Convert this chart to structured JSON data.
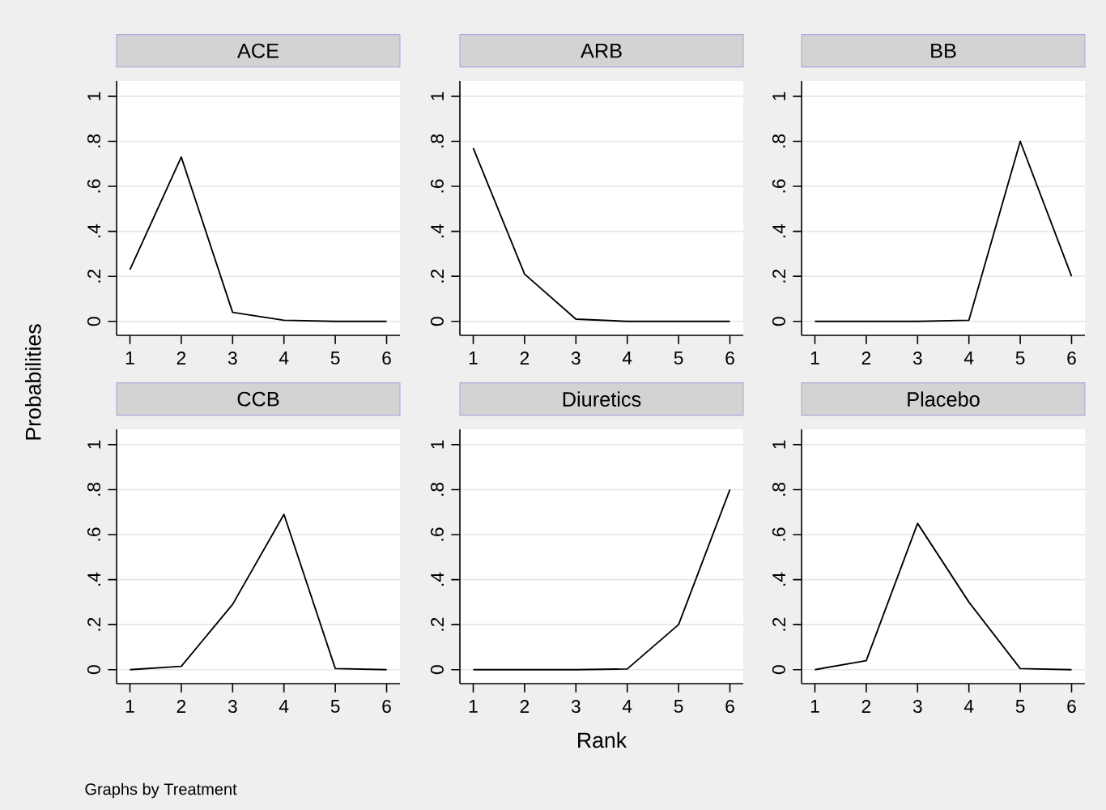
{
  "chart_data": [
    {
      "type": "line",
      "title": "ACE",
      "ylabel": "Probabilities",
      "x": [
        1,
        2,
        3,
        4,
        5,
        6
      ],
      "values": [
        0.23,
        0.73,
        0.04,
        0.005,
        0,
        0
      ],
      "color": "#000000",
      "xlim": [
        0.74,
        6.26
      ],
      "ylim": [
        -0.062,
        1.068
      ],
      "xticks": [
        1,
        2,
        3,
        4,
        5,
        6
      ],
      "yticks": [
        {
          "value": 0,
          "label": "0"
        },
        {
          "value": 0.2,
          "label": ".2"
        },
        {
          "value": 0.4,
          "label": ".4"
        },
        {
          "value": 0.6,
          "label": ".6"
        },
        {
          "value": 0.8,
          "label": ".8"
        },
        {
          "value": 1,
          "label": "1"
        }
      ],
      "grid": "y"
    },
    {
      "type": "line",
      "title": "ARB",
      "x": [
        1,
        2,
        3,
        4,
        5,
        6
      ],
      "values": [
        0.77,
        0.21,
        0.01,
        0,
        0,
        0
      ],
      "color": "#000000",
      "xlim": [
        0.74,
        6.26
      ],
      "ylim": [
        -0.062,
        1.068
      ],
      "xticks": [
        1,
        2,
        3,
        4,
        5,
        6
      ],
      "yticks": [
        {
          "value": 0,
          "label": "0"
        },
        {
          "value": 0.2,
          "label": ".2"
        },
        {
          "value": 0.4,
          "label": ".4"
        },
        {
          "value": 0.6,
          "label": ".6"
        },
        {
          "value": 0.8,
          "label": ".8"
        },
        {
          "value": 1,
          "label": "1"
        }
      ],
      "grid": "y"
    },
    {
      "type": "line",
      "title": "BB",
      "x": [
        1,
        2,
        3,
        4,
        5,
        6
      ],
      "values": [
        0,
        0,
        0,
        0.005,
        0.8,
        0.2
      ],
      "color": "#000000",
      "xlim": [
        0.74,
        6.26
      ],
      "ylim": [
        -0.062,
        1.068
      ],
      "xticks": [
        1,
        2,
        3,
        4,
        5,
        6
      ],
      "yticks": [
        {
          "value": 0,
          "label": "0"
        },
        {
          "value": 0.2,
          "label": ".2"
        },
        {
          "value": 0.4,
          "label": ".4"
        },
        {
          "value": 0.6,
          "label": ".6"
        },
        {
          "value": 0.8,
          "label": ".8"
        },
        {
          "value": 1,
          "label": "1"
        }
      ],
      "grid": "y"
    },
    {
      "type": "line",
      "title": "CCB",
      "annotations": [
        "Graphs by Treatment"
      ],
      "x": [
        1,
        2,
        3,
        4,
        5,
        6
      ],
      "values": [
        0,
        0.015,
        0.29,
        0.69,
        0.005,
        0
      ],
      "color": "#000000",
      "xlim": [
        0.74,
        6.26
      ],
      "ylim": [
        -0.062,
        1.068
      ],
      "xticks": [
        1,
        2,
        3,
        4,
        5,
        6
      ],
      "yticks": [
        {
          "value": 0,
          "label": "0"
        },
        {
          "value": 0.2,
          "label": ".2"
        },
        {
          "value": 0.4,
          "label": ".4"
        },
        {
          "value": 0.6,
          "label": ".6"
        },
        {
          "value": 0.8,
          "label": ".8"
        },
        {
          "value": 1,
          "label": "1"
        }
      ],
      "grid": "y"
    },
    {
      "type": "line",
      "title": "Diuretics",
      "xlabel": "Rank",
      "x": [
        1,
        2,
        3,
        4,
        5,
        6
      ],
      "values": [
        0,
        0,
        0,
        0.003,
        0.2,
        0.8
      ],
      "color": "#000000",
      "xlim": [
        0.74,
        6.26
      ],
      "ylim": [
        -0.062,
        1.068
      ],
      "xticks": [
        1,
        2,
        3,
        4,
        5,
        6
      ],
      "yticks": [
        {
          "value": 0,
          "label": "0"
        },
        {
          "value": 0.2,
          "label": ".2"
        },
        {
          "value": 0.4,
          "label": ".4"
        },
        {
          "value": 0.6,
          "label": ".6"
        },
        {
          "value": 0.8,
          "label": ".8"
        },
        {
          "value": 1,
          "label": "1"
        }
      ],
      "grid": "y"
    },
    {
      "type": "line",
      "title": "Placebo",
      "x": [
        1,
        2,
        3,
        4,
        5,
        6
      ],
      "values": [
        0,
        0.04,
        0.65,
        0.3,
        0.005,
        0
      ],
      "color": "#000000",
      "xlim": [
        0.74,
        6.26
      ],
      "ylim": [
        -0.062,
        1.068
      ],
      "xticks": [
        1,
        2,
        3,
        4,
        5,
        6
      ],
      "yticks": [
        {
          "value": 0,
          "label": "0"
        },
        {
          "value": 0.2,
          "label": ".2"
        },
        {
          "value": 0.4,
          "label": ".4"
        },
        {
          "value": 0.6,
          "label": ".6"
        },
        {
          "value": 0.8,
          "label": ".8"
        },
        {
          "value": 1,
          "label": "1"
        }
      ],
      "grid": "y"
    }
  ]
}
